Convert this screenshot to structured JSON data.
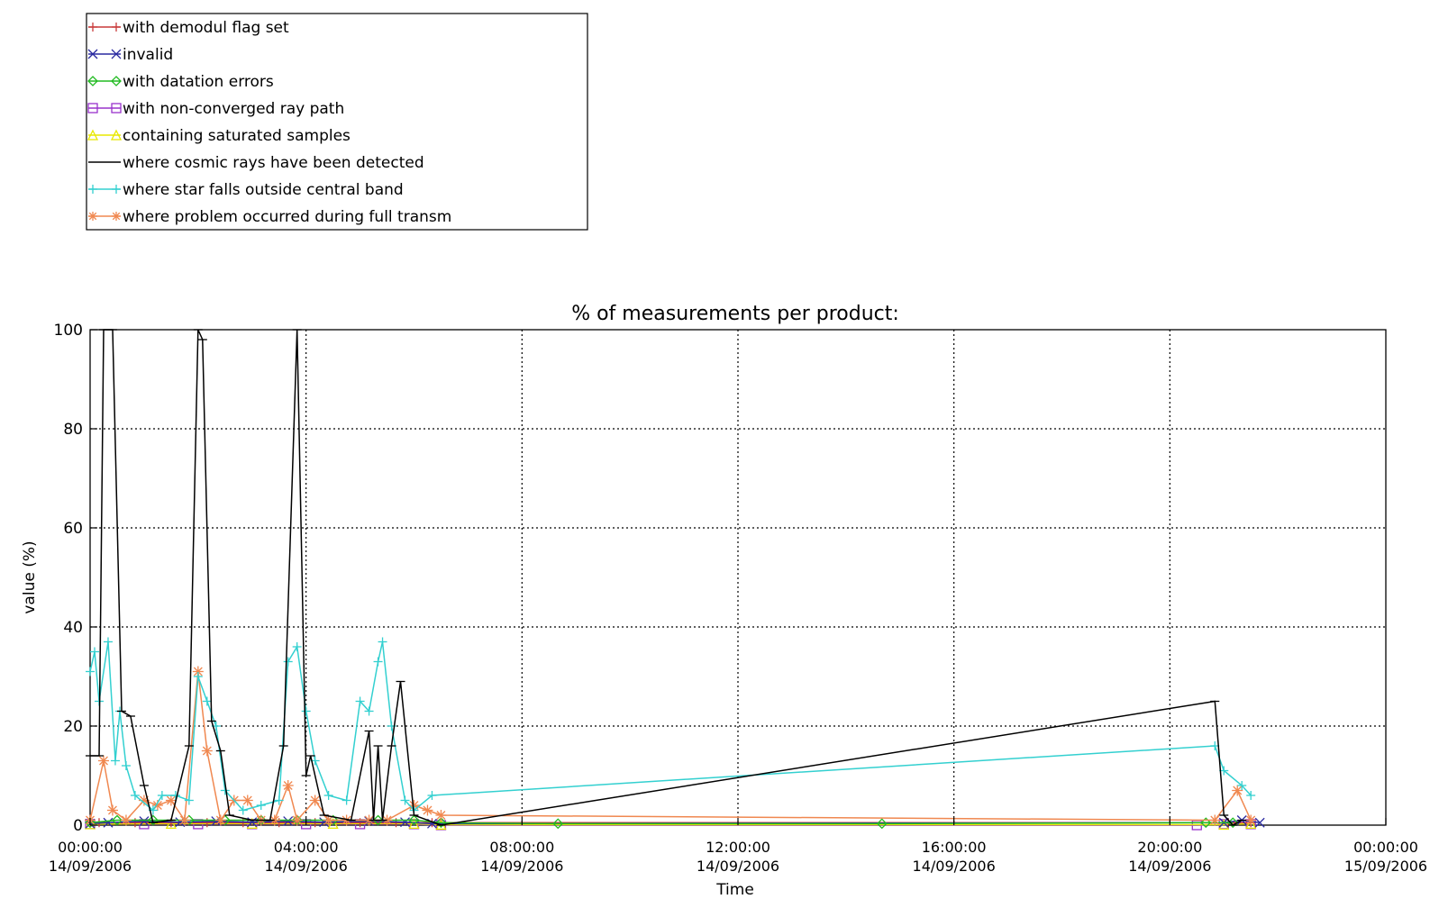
{
  "chart_data": {
    "type": "line",
    "title": "% of measurements per product:",
    "xlabel": "Time",
    "ylabel": "value (%)",
    "xlim": [
      "2006-09-14 00:00",
      "2006-09-15 00:00"
    ],
    "ylim": [
      0,
      100
    ],
    "grid": true,
    "legend_position": "top-left, outside plot area",
    "x_ticks": [
      {
        "time": "00:00:00",
        "date": "14/09/2006"
      },
      {
        "time": "04:00:00",
        "date": "14/09/2006"
      },
      {
        "time": "08:00:00",
        "date": "14/09/2006"
      },
      {
        "time": "12:00:00",
        "date": "14/09/2006"
      },
      {
        "time": "16:00:00",
        "date": "14/09/2006"
      },
      {
        "time": "20:00:00",
        "date": "14/09/2006"
      },
      {
        "time": "00:00:00",
        "date": "15/09/2006"
      }
    ],
    "y_ticks": [
      "0",
      "20",
      "40",
      "60",
      "80",
      "100"
    ],
    "series": [
      {
        "name": "with demodul flag set",
        "color": "#c83a3a",
        "marker": "plus",
        "points": [
          [
            "2006-09-14 00:00",
            0.5
          ],
          [
            "2006-09-14 00:10",
            0.5
          ],
          [
            "2006-09-14 00:50",
            0.5
          ],
          [
            "2006-09-14 01:30",
            0.5
          ],
          [
            "2006-09-14 02:10",
            0.5
          ],
          [
            "2006-09-14 02:50",
            0.5
          ],
          [
            "2006-09-14 03:30",
            0.5
          ],
          [
            "2006-09-14 04:10",
            0.5
          ],
          [
            "2006-09-14 05:00",
            0.5
          ],
          [
            "2006-09-14 05:40",
            0.5
          ],
          [
            "2006-09-14 06:20",
            0.5
          ],
          [
            "2006-09-14 21:05",
            0.5
          ],
          [
            "2006-09-14 21:30",
            0.5
          ]
        ]
      },
      {
        "name": "invalid",
        "color": "#2a2aa0",
        "marker": "x",
        "points": [
          [
            "2006-09-14 00:00",
            0.3
          ],
          [
            "2006-09-14 00:20",
            0.5
          ],
          [
            "2006-09-14 01:00",
            0.8
          ],
          [
            "2006-09-14 01:40",
            0.6
          ],
          [
            "2006-09-14 02:20",
            0.8
          ],
          [
            "2006-09-14 03:00",
            0.6
          ],
          [
            "2006-09-14 03:40",
            0.8
          ],
          [
            "2006-09-14 04:20",
            0.6
          ],
          [
            "2006-09-14 05:10",
            0.8
          ],
          [
            "2006-09-14 05:50",
            0.6
          ],
          [
            "2006-09-14 06:20",
            0.3
          ],
          [
            "2006-09-14 21:00",
            0.5
          ],
          [
            "2006-09-14 21:20",
            1
          ],
          [
            "2006-09-14 21:40",
            0.5
          ]
        ]
      },
      {
        "name": "with datation errors",
        "color": "#22bb22",
        "marker": "diamond",
        "points": [
          [
            "2006-09-14 00:00",
            0.5
          ],
          [
            "2006-09-14 00:30",
            1
          ],
          [
            "2006-09-14 01:10",
            1
          ],
          [
            "2006-09-14 01:50",
            1
          ],
          [
            "2006-09-14 02:30",
            1
          ],
          [
            "2006-09-14 03:10",
            1
          ],
          [
            "2006-09-14 03:50",
            1
          ],
          [
            "2006-09-14 04:30",
            1
          ],
          [
            "2006-09-14 05:20",
            1
          ],
          [
            "2006-09-14 06:00",
            1
          ],
          [
            "2006-09-14 06:30",
            0.5
          ],
          [
            "2006-09-14 08:40",
            0.3
          ],
          [
            "2006-09-14 14:40",
            0.3
          ],
          [
            "2006-09-14 20:40",
            0.5
          ],
          [
            "2006-09-14 21:10",
            0.5
          ]
        ]
      },
      {
        "name": "with non-converged ray path",
        "color": "#9933cc",
        "marker": "square",
        "points": [
          [
            "2006-09-14 00:00",
            0.2
          ],
          [
            "2006-09-14 01:00",
            0.2
          ],
          [
            "2006-09-14 02:00",
            0.2
          ],
          [
            "2006-09-14 03:00",
            0.2
          ],
          [
            "2006-09-14 04:00",
            0.2
          ],
          [
            "2006-09-14 05:00",
            0.2
          ],
          [
            "2006-09-14 06:00",
            0.2
          ],
          [
            "2006-09-14 06:30",
            0
          ],
          [
            "2006-09-14 20:30",
            0
          ],
          [
            "2006-09-14 21:00",
            0.2
          ],
          [
            "2006-09-14 21:30",
            0.2
          ]
        ]
      },
      {
        "name": "containing saturated samples",
        "color": "#e8e800",
        "marker": "triangle",
        "points": [
          [
            "2006-09-14 00:00",
            0.2
          ],
          [
            "2006-09-14 01:30",
            0.3
          ],
          [
            "2006-09-14 03:00",
            0.3
          ],
          [
            "2006-09-14 04:30",
            0.3
          ],
          [
            "2006-09-14 06:00",
            0.3
          ],
          [
            "2006-09-14 06:30",
            0.1
          ],
          [
            "2006-09-14 21:00",
            0.1
          ],
          [
            "2006-09-14 21:30",
            0.3
          ]
        ]
      },
      {
        "name": "where cosmic rays have been detected",
        "color": "#000000",
        "marker": "none",
        "points": [
          [
            "2006-09-14 00:00",
            14
          ],
          [
            "2006-09-14 00:10",
            14
          ],
          [
            "2006-09-14 00:15",
            100
          ],
          [
            "2006-09-14 00:25",
            100
          ],
          [
            "2006-09-14 00:35",
            23
          ],
          [
            "2006-09-14 00:45",
            22
          ],
          [
            "2006-09-14 01:00",
            8
          ],
          [
            "2006-09-14 01:10",
            0.5
          ],
          [
            "2006-09-14 01:30",
            1
          ],
          [
            "2006-09-14 01:50",
            16
          ],
          [
            "2006-09-14 02:00",
            100
          ],
          [
            "2006-09-14 02:05",
            98
          ],
          [
            "2006-09-14 02:15",
            21
          ],
          [
            "2006-09-14 02:25",
            15
          ],
          [
            "2006-09-14 02:35",
            2
          ],
          [
            "2006-09-14 03:00",
            1
          ],
          [
            "2006-09-14 03:20",
            1
          ],
          [
            "2006-09-14 03:35",
            16
          ],
          [
            "2006-09-14 03:50",
            100
          ],
          [
            "2006-09-14 04:00",
            10
          ],
          [
            "2006-09-14 04:05",
            14
          ],
          [
            "2006-09-14 04:20",
            2
          ],
          [
            "2006-09-14 04:50",
            1
          ],
          [
            "2006-09-14 05:10",
            19
          ],
          [
            "2006-09-14 05:15",
            1
          ],
          [
            "2006-09-14 05:20",
            16
          ],
          [
            "2006-09-14 05:25",
            1
          ],
          [
            "2006-09-14 05:35",
            16
          ],
          [
            "2006-09-14 05:45",
            29
          ],
          [
            "2006-09-14 06:00",
            2
          ],
          [
            "2006-09-14 06:30",
            0
          ],
          [
            "2006-09-14 20:50",
            25
          ],
          [
            "2006-09-14 21:00",
            2
          ],
          [
            "2006-09-14 21:10",
            0
          ],
          [
            "2006-09-14 21:20",
            1
          ]
        ]
      },
      {
        "name": "where star falls outside central band",
        "color": "#33d0d0",
        "marker": "tbar",
        "points": [
          [
            "2006-09-14 00:00",
            31
          ],
          [
            "2006-09-14 00:05",
            35
          ],
          [
            "2006-09-14 00:10",
            25
          ],
          [
            "2006-09-14 00:20",
            37
          ],
          [
            "2006-09-14 00:28",
            13
          ],
          [
            "2006-09-14 00:33",
            23
          ],
          [
            "2006-09-14 00:40",
            12
          ],
          [
            "2006-09-14 00:50",
            6
          ],
          [
            "2006-09-14 01:10",
            3
          ],
          [
            "2006-09-14 01:20",
            6
          ],
          [
            "2006-09-14 01:35",
            6
          ],
          [
            "2006-09-14 01:50",
            5
          ],
          [
            "2006-09-14 02:00",
            30
          ],
          [
            "2006-09-14 02:10",
            25
          ],
          [
            "2006-09-14 02:20",
            20
          ],
          [
            "2006-09-14 02:30",
            7
          ],
          [
            "2006-09-14 02:50",
            3
          ],
          [
            "2006-09-14 03:10",
            4
          ],
          [
            "2006-09-14 03:30",
            5
          ],
          [
            "2006-09-14 03:40",
            33
          ],
          [
            "2006-09-14 03:50",
            36
          ],
          [
            "2006-09-14 04:00",
            23
          ],
          [
            "2006-09-14 04:10",
            13
          ],
          [
            "2006-09-14 04:25",
            6
          ],
          [
            "2006-09-14 04:45",
            5
          ],
          [
            "2006-09-14 05:00",
            25
          ],
          [
            "2006-09-14 05:10",
            23
          ],
          [
            "2006-09-14 05:20",
            33
          ],
          [
            "2006-09-14 05:25",
            37
          ],
          [
            "2006-09-14 05:35",
            20
          ],
          [
            "2006-09-14 05:50",
            5
          ],
          [
            "2006-09-14 06:00",
            3
          ],
          [
            "2006-09-14 06:20",
            6
          ],
          [
            "2006-09-14 20:50",
            16
          ],
          [
            "2006-09-14 21:00",
            11
          ],
          [
            "2006-09-14 21:20",
            8
          ],
          [
            "2006-09-14 21:30",
            6
          ]
        ]
      },
      {
        "name": "where problem occurred during full transm",
        "color": "#f08850",
        "marker": "star",
        "points": [
          [
            "2006-09-14 00:00",
            1
          ],
          [
            "2006-09-14 00:15",
            13
          ],
          [
            "2006-09-14 00:25",
            3
          ],
          [
            "2006-09-14 00:40",
            1
          ],
          [
            "2006-09-14 01:00",
            5
          ],
          [
            "2006-09-14 01:15",
            4
          ],
          [
            "2006-09-14 01:30",
            5
          ],
          [
            "2006-09-14 01:45",
            1
          ],
          [
            "2006-09-14 02:00",
            31
          ],
          [
            "2006-09-14 02:10",
            15
          ],
          [
            "2006-09-14 02:25",
            1
          ],
          [
            "2006-09-14 02:40",
            5
          ],
          [
            "2006-09-14 02:55",
            5
          ],
          [
            "2006-09-14 03:10",
            1
          ],
          [
            "2006-09-14 03:25",
            1
          ],
          [
            "2006-09-14 03:40",
            8
          ],
          [
            "2006-09-14 03:50",
            1
          ],
          [
            "2006-09-14 04:10",
            5
          ],
          [
            "2006-09-14 04:25",
            1
          ],
          [
            "2006-09-14 04:45",
            1
          ],
          [
            "2006-09-14 05:10",
            1
          ],
          [
            "2006-09-14 05:30",
            1
          ],
          [
            "2006-09-14 06:00",
            4
          ],
          [
            "2006-09-14 06:15",
            3
          ],
          [
            "2006-09-14 06:30",
            2
          ],
          [
            "2006-09-14 20:50",
            1
          ],
          [
            "2006-09-14 21:15",
            7
          ],
          [
            "2006-09-14 21:30",
            1
          ]
        ]
      }
    ]
  }
}
